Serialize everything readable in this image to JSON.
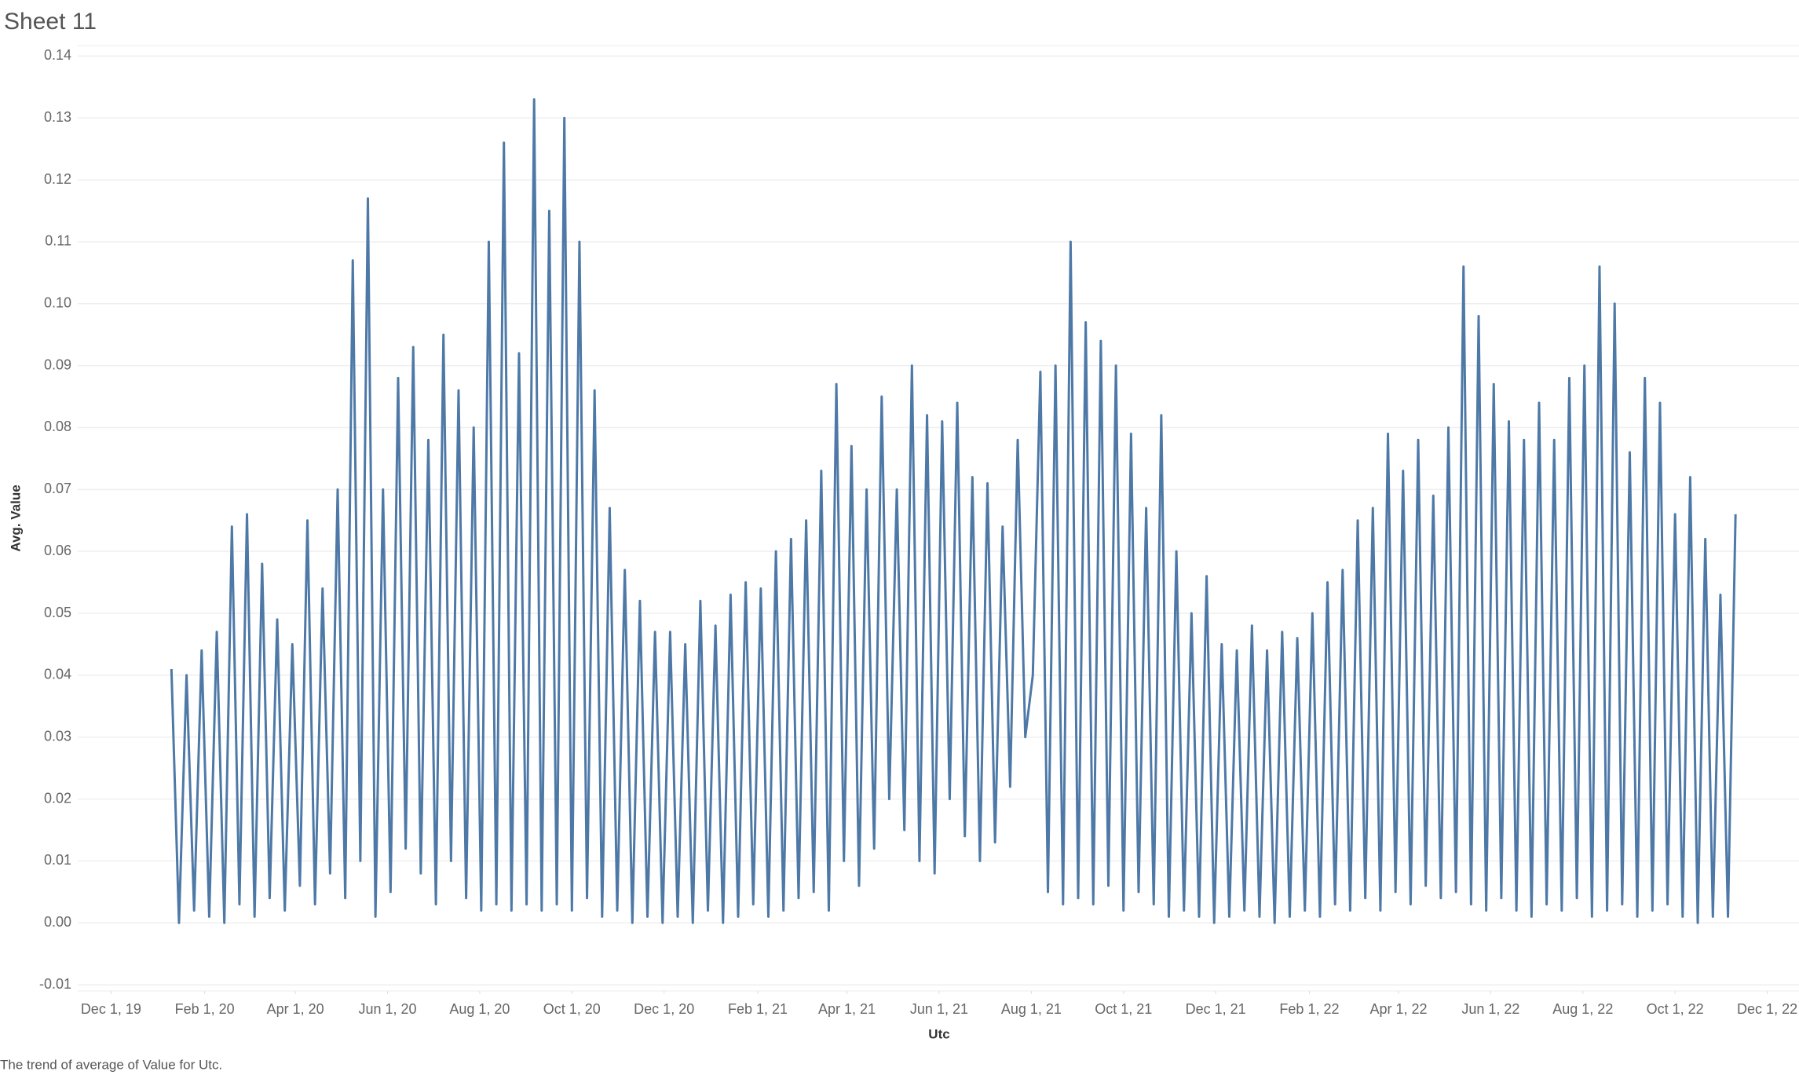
{
  "chart_data": {
    "type": "line",
    "title": "Sheet 11",
    "x_label": "Utc",
    "y_label": "Avg. Value",
    "caption": "The trend of average of Value for Utc.",
    "color": "#4e79a7",
    "grid": true,
    "ylim": [
      -0.011,
      0.1417
    ],
    "yticks": [
      -0.01,
      {
        "value": 0,
        "label": "0.00"
      },
      0.01,
      0.02,
      0.03,
      0.04,
      0.05,
      0.06,
      0.07,
      0.08,
      0.09,
      {
        "value": 0.1,
        "label": "0.10"
      },
      0.11,
      0.12,
      0.13,
      0.14
    ],
    "xlim": [
      "2019-11-09",
      "2022-12-22"
    ],
    "xticks": [
      {
        "value": "2019-12-01",
        "label": "Dec 1, 19"
      },
      {
        "value": "2020-02-01",
        "label": "Feb 1, 20"
      },
      {
        "value": "2020-04-01",
        "label": "Apr 1, 20"
      },
      {
        "value": "2020-06-01",
        "label": "Jun 1, 20"
      },
      {
        "value": "2020-08-01",
        "label": "Aug 1, 20"
      },
      {
        "value": "2020-10-01",
        "label": "Oct 1, 20"
      },
      {
        "value": "2020-12-01",
        "label": "Dec 1, 20"
      },
      {
        "value": "2021-02-01",
        "label": "Feb 1, 21"
      },
      {
        "value": "2021-04-01",
        "label": "Apr 1, 21"
      },
      {
        "value": "2021-06-01",
        "label": "Jun 1, 21"
      },
      {
        "value": "2021-08-01",
        "label": "Aug 1, 21"
      },
      {
        "value": "2021-10-01",
        "label": "Oct 1, 21"
      },
      {
        "value": "2021-12-01",
        "label": "Dec 1, 21"
      },
      {
        "value": "2022-02-01",
        "label": "Feb 1, 22"
      },
      {
        "value": "2022-04-01",
        "label": "Apr 1, 22"
      },
      {
        "value": "2022-06-01",
        "label": "Jun 1, 22"
      },
      {
        "value": "2022-08-01",
        "label": "Aug 1, 22"
      },
      {
        "value": "2022-10-01",
        "label": "Oct 1, 22"
      },
      {
        "value": "2022-12-01",
        "label": "Dec 1, 22"
      }
    ],
    "x": [
      "2020-01-10",
      "2020-01-15",
      "2020-01-20",
      "2020-01-25",
      "2020-01-30",
      "2020-02-04",
      "2020-02-09",
      "2020-02-14",
      "2020-02-19",
      "2020-02-24",
      "2020-02-29",
      "2020-03-05",
      "2020-03-10",
      "2020-03-15",
      "2020-03-20",
      "2020-03-25",
      "2020-03-30",
      "2020-04-04",
      "2020-04-09",
      "2020-04-14",
      "2020-04-19",
      "2020-04-24",
      "2020-04-29",
      "2020-05-04",
      "2020-05-09",
      "2020-05-14",
      "2020-05-19",
      "2020-05-24",
      "2020-05-29",
      "2020-06-03",
      "2020-06-08",
      "2020-06-13",
      "2020-06-18",
      "2020-06-23",
      "2020-06-28",
      "2020-07-03",
      "2020-07-08",
      "2020-07-13",
      "2020-07-18",
      "2020-07-23",
      "2020-07-28",
      "2020-08-02",
      "2020-08-07",
      "2020-08-12",
      "2020-08-17",
      "2020-08-22",
      "2020-08-27",
      "2020-09-01",
      "2020-09-06",
      "2020-09-11",
      "2020-09-16",
      "2020-09-21",
      "2020-09-26",
      "2020-10-01",
      "2020-10-06",
      "2020-10-11",
      "2020-10-16",
      "2020-10-21",
      "2020-10-26",
      "2020-10-31",
      "2020-11-05",
      "2020-11-10",
      "2020-11-15",
      "2020-11-20",
      "2020-11-25",
      "2020-11-30",
      "2020-12-05",
      "2020-12-10",
      "2020-12-15",
      "2020-12-20",
      "2020-12-25",
      "2020-12-30",
      "2021-01-04",
      "2021-01-09",
      "2021-01-14",
      "2021-01-19",
      "2021-01-24",
      "2021-01-29",
      "2021-02-03",
      "2021-02-08",
      "2021-02-13",
      "2021-02-18",
      "2021-02-23",
      "2021-02-28",
      "2021-03-05",
      "2021-03-10",
      "2021-03-15",
      "2021-03-20",
      "2021-03-25",
      "2021-03-30",
      "2021-04-04",
      "2021-04-09",
      "2021-04-14",
      "2021-04-19",
      "2021-04-24",
      "2021-04-29",
      "2021-05-04",
      "2021-05-09",
      "2021-05-14",
      "2021-05-19",
      "2021-05-24",
      "2021-05-29",
      "2021-06-03",
      "2021-06-08",
      "2021-06-13",
      "2021-06-18",
      "2021-06-23",
      "2021-06-28",
      "2021-07-03",
      "2021-07-08",
      "2021-07-13",
      "2021-07-18",
      "2021-07-23",
      "2021-07-28",
      "2021-08-02",
      "2021-08-07",
      "2021-08-12",
      "2021-08-17",
      "2021-08-22",
      "2021-08-27",
      "2021-09-01",
      "2021-09-06",
      "2021-09-11",
      "2021-09-16",
      "2021-09-21",
      "2021-09-26",
      "2021-10-01",
      "2021-10-06",
      "2021-10-11",
      "2021-10-16",
      "2021-10-21",
      "2021-10-26",
      "2021-10-31",
      "2021-11-05",
      "2021-11-10",
      "2021-11-15",
      "2021-11-20",
      "2021-11-25",
      "2021-11-30",
      "2021-12-05",
      "2021-12-10",
      "2021-12-15",
      "2021-12-20",
      "2021-12-25",
      "2021-12-30",
      "2022-01-04",
      "2022-01-09",
      "2022-01-14",
      "2022-01-19",
      "2022-01-24",
      "2022-01-29",
      "2022-02-03",
      "2022-02-08",
      "2022-02-13",
      "2022-02-18",
      "2022-02-23",
      "2022-02-28",
      "2022-03-05",
      "2022-03-10",
      "2022-03-15",
      "2022-03-20",
      "2022-03-25",
      "2022-03-30",
      "2022-04-04",
      "2022-04-09",
      "2022-04-14",
      "2022-04-19",
      "2022-04-24",
      "2022-04-29",
      "2022-05-04",
      "2022-05-09",
      "2022-05-14",
      "2022-05-19",
      "2022-05-24",
      "2022-05-29",
      "2022-06-03",
      "2022-06-08",
      "2022-06-13",
      "2022-06-18",
      "2022-06-23",
      "2022-06-28",
      "2022-07-03",
      "2022-07-08",
      "2022-07-13",
      "2022-07-18",
      "2022-07-23",
      "2022-07-28",
      "2022-08-02",
      "2022-08-07",
      "2022-08-12",
      "2022-08-17",
      "2022-08-22",
      "2022-08-27",
      "2022-09-01",
      "2022-09-06",
      "2022-09-11",
      "2022-09-16",
      "2022-09-21",
      "2022-09-26",
      "2022-10-01",
      "2022-10-06",
      "2022-10-11",
      "2022-10-16",
      "2022-10-21",
      "2022-10-26",
      "2022-10-31",
      "2022-11-05",
      "2022-11-10"
    ],
    "values": [
      0.041,
      0.0,
      0.04,
      0.002,
      0.044,
      0.001,
      0.047,
      0.0,
      0.064,
      0.003,
      0.066,
      0.001,
      0.058,
      0.004,
      0.049,
      0.002,
      0.045,
      0.006,
      0.065,
      0.003,
      0.054,
      0.008,
      0.07,
      0.004,
      0.107,
      0.01,
      0.117,
      0.001,
      0.07,
      0.005,
      0.088,
      0.012,
      0.093,
      0.008,
      0.078,
      0.003,
      0.095,
      0.01,
      0.086,
      0.004,
      0.08,
      0.002,
      0.11,
      0.003,
      0.126,
      0.002,
      0.092,
      0.003,
      0.133,
      0.002,
      0.115,
      0.003,
      0.13,
      0.002,
      0.11,
      0.004,
      0.086,
      0.001,
      0.067,
      0.002,
      0.057,
      0.0,
      0.052,
      0.001,
      0.047,
      0.0,
      0.047,
      0.001,
      0.045,
      0.0,
      0.052,
      0.002,
      0.048,
      0.0,
      0.053,
      0.001,
      0.055,
      0.003,
      0.054,
      0.001,
      0.06,
      0.002,
      0.062,
      0.004,
      0.065,
      0.005,
      0.073,
      0.002,
      0.087,
      0.01,
      0.077,
      0.006,
      0.07,
      0.012,
      0.085,
      0.02,
      0.07,
      0.015,
      0.09,
      0.01,
      0.082,
      0.008,
      0.081,
      0.02,
      0.084,
      0.014,
      0.072,
      0.01,
      0.071,
      0.013,
      0.064,
      0.022,
      0.078,
      0.03,
      0.04,
      0.089,
      0.005,
      0.09,
      0.003,
      0.11,
      0.004,
      0.097,
      0.003,
      0.094,
      0.006,
      0.09,
      0.002,
      0.079,
      0.005,
      0.067,
      0.003,
      0.082,
      0.001,
      0.06,
      0.002,
      0.05,
      0.001,
      0.056,
      0.0,
      0.045,
      0.001,
      0.044,
      0.002,
      0.048,
      0.001,
      0.044,
      0.0,
      0.047,
      0.001,
      0.046,
      0.002,
      0.05,
      0.001,
      0.055,
      0.003,
      0.057,
      0.002,
      0.065,
      0.004,
      0.067,
      0.002,
      0.079,
      0.005,
      0.073,
      0.003,
      0.078,
      0.006,
      0.069,
      0.004,
      0.08,
      0.005,
      0.106,
      0.003,
      0.098,
      0.002,
      0.087,
      0.004,
      0.081,
      0.002,
      0.078,
      0.001,
      0.084,
      0.003,
      0.078,
      0.002,
      0.088,
      0.004,
      0.09,
      0.001,
      0.106,
      0.002,
      0.1,
      0.003,
      0.076,
      0.001,
      0.088,
      0.002,
      0.084,
      0.003,
      0.066,
      0.001,
      0.072,
      0.0,
      0.062,
      0.001,
      0.053,
      0.001,
      0.066
    ]
  }
}
